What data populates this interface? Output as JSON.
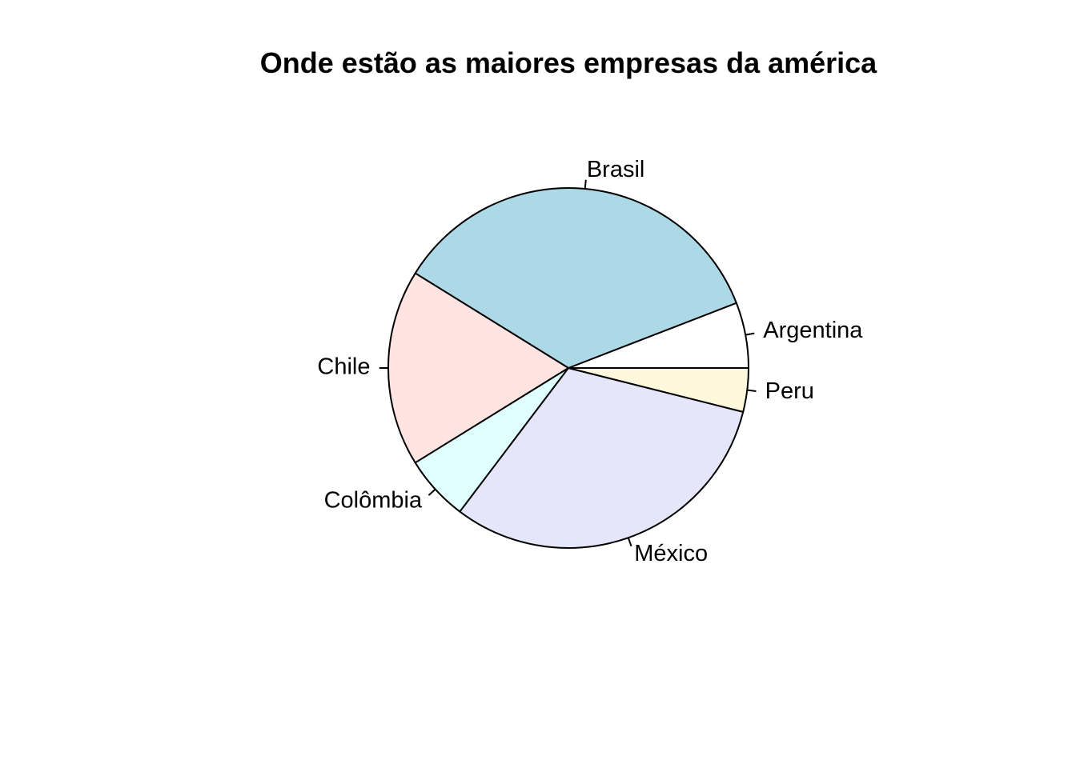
{
  "chart_data": {
    "type": "pie",
    "title": "Onde estão as maiores empresas da américa",
    "labels": [
      "Argentina",
      "Brasil",
      "Chile",
      "Colômbia",
      "México",
      "Peru"
    ],
    "values": [
      3,
      18,
      9,
      3,
      16,
      2
    ],
    "colors": [
      "#FFFFFF",
      "#ADD8E6",
      "#FFE4E1",
      "#E0FFFF",
      "#E6E6FA",
      "#FFF8DC"
    ],
    "start_angle_deg": 0,
    "direction": "counterclockwise",
    "border_color": "#000000"
  }
}
